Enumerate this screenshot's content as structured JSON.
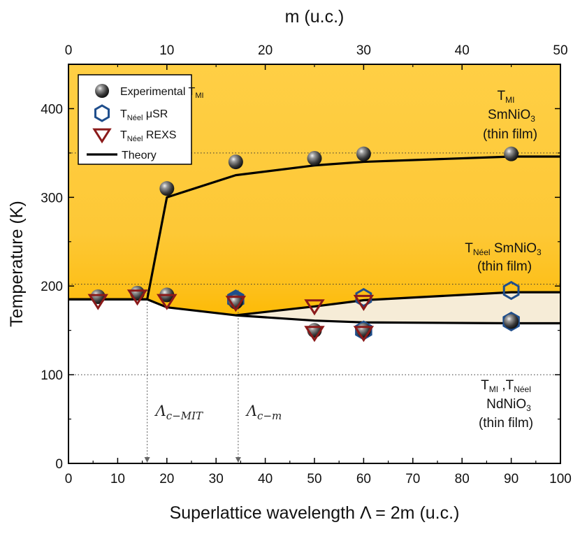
{
  "chart_data": {
    "type": "scatter",
    "title": "",
    "xlabel": "Superlattice wavelength Λ = 2m (u.c.)",
    "x2label": "m (u.c.)",
    "ylabel": "Temperature (K)",
    "xlim": [
      0,
      100
    ],
    "x2lim": [
      0,
      50
    ],
    "ylim": [
      0,
      450
    ],
    "xticks": [
      0,
      10,
      20,
      30,
      40,
      50,
      60,
      70,
      80,
      90,
      100
    ],
    "x2ticks": [
      0,
      10,
      20,
      30,
      40,
      50
    ],
    "yticks": [
      0,
      100,
      200,
      300,
      400
    ],
    "reference_lines_y": [
      350,
      202,
      100
    ],
    "series": [
      {
        "name": "Experimental T_MI",
        "marker": "sphere",
        "color": "#444444",
        "x": [
          6,
          14,
          20,
          20,
          34,
          34,
          50,
          50,
          60,
          60,
          90,
          90
        ],
        "y": [
          188,
          192,
          310,
          190,
          340,
          182,
          344,
          150,
          349,
          150,
          349,
          160
        ]
      },
      {
        "name": "T_Néel μSR",
        "marker": "hexagon",
        "color": "#1f4e8c",
        "filled_x": [
          34,
          60,
          90
        ],
        "filled_y": [
          185,
          150,
          160
        ],
        "open_x": [
          60,
          90
        ],
        "open_y": [
          187,
          195
        ]
      },
      {
        "name": "T_Néel REXS",
        "marker": "triangle-down",
        "color": "#8b1a1a",
        "x": [
          6,
          14,
          20,
          34,
          50,
          50,
          60,
          60
        ],
        "y": [
          184,
          189,
          184,
          182,
          178,
          148,
          183,
          148
        ]
      },
      {
        "name": "Theory",
        "marker": "line",
        "color": "#000000",
        "segments": [
          {
            "x": [
              0,
              16,
              20,
              34,
              50,
              60,
              90,
              100
            ],
            "y": [
              185,
              185,
              300,
              325,
              336,
              340,
              346,
              346
            ]
          },
          {
            "x": [
              0,
              16,
              20,
              34,
              50,
              60,
              90,
              100
            ],
            "y": [
              185,
              185,
              176,
              167,
              161,
              159,
              158,
              158
            ]
          },
          {
            "x": [
              34,
              50,
              60,
              90,
              100
            ],
            "y": [
              167,
              177,
              184,
              193,
              193
            ]
          }
        ]
      }
    ],
    "legend": {
      "position": "top-left",
      "entries": [
        {
          "main": "Experimental T",
          "sub": "MI",
          "tail": ""
        },
        {
          "main": "T",
          "sub": "Néel",
          "tail": " μSR"
        },
        {
          "main": "T",
          "sub": "Néel",
          "tail": " REXS"
        },
        {
          "main": "Theory",
          "sub": "",
          "tail": ""
        }
      ]
    },
    "annotations": {
      "sm_tmi": {
        "t": "T",
        "sub": "MI",
        "line2": "SmNiO",
        "line2_sub": "3",
        "line3": "(thin film)"
      },
      "sm_tneel": {
        "t": "T",
        "sub": "Néel",
        "tail": " SmNiO",
        "tail_sub": "3",
        "line2": "(thin film)"
      },
      "nd": {
        "t1": "T",
        "sub1": "MI",
        "sep": " ,",
        "t2": "T",
        "sub2": "Néel",
        "line2": "NdNiO",
        "line2_sub": "3",
        "line3": "(thin film)"
      }
    },
    "critical_markers": [
      {
        "x": 16,
        "label": "Λ",
        "label_sub": "c−MIT"
      },
      {
        "x": 34.5,
        "label": "Λ",
        "label_sub": "c−m"
      }
    ],
    "colors": {
      "metallic_fill": "#fdc92f",
      "metallic_fill_top": "#ffd04a",
      "afm_region": "#f6ecd7",
      "gradient_bottom": "#fdb900"
    }
  }
}
